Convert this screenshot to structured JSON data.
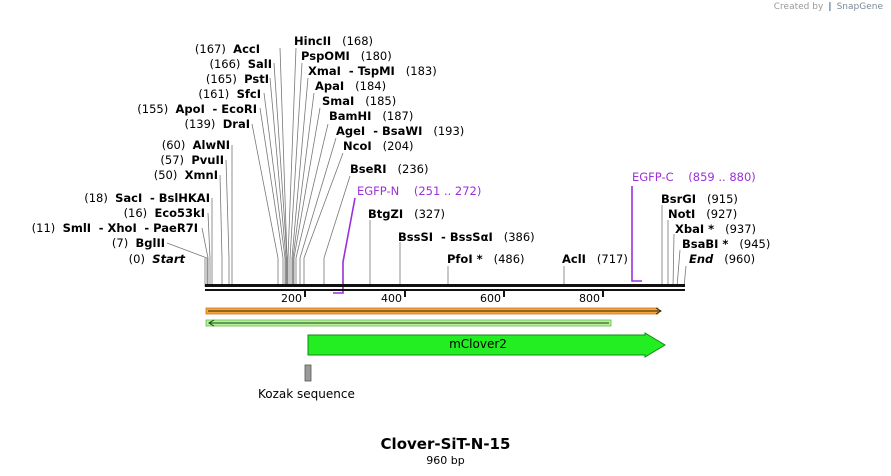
{
  "credit": {
    "prefix": "Created by",
    "brand": "SnapGene"
  },
  "title": "Clover-SiT-N-15",
  "subtitle": "960 bp",
  "ruler": {
    "ticks": [
      "200",
      "400",
      "600",
      "800"
    ]
  },
  "sites": [
    {
      "pos": "(167)",
      "name": "AccI"
    },
    {
      "pos": "(166)",
      "name": "SalI"
    },
    {
      "pos": "(165)",
      "name": "PstI"
    },
    {
      "pos": "(161)",
      "name": "SfcI"
    },
    {
      "pos": "(155)",
      "name": "ApoI",
      "name2": "EcoRI"
    },
    {
      "pos": "(139)",
      "name": "DraI"
    },
    {
      "pos": "(60)",
      "name": "AlwNI"
    },
    {
      "pos": "(57)",
      "name": "PvuII"
    },
    {
      "pos": "(50)",
      "name": "XmnI"
    },
    {
      "pos": "(18)",
      "name": "SacI",
      "name2": "BslHKAI"
    },
    {
      "pos": "(16)",
      "name": "Eco53kI"
    },
    {
      "pos": "(11)",
      "name": "SmlI",
      "name2": "XhoI",
      "name3": "PaeR7I"
    },
    {
      "pos": "(7)",
      "name": "BglII"
    },
    {
      "pos": "(0)",
      "name": "Start"
    },
    {
      "pos": "(168)",
      "name": "HincII"
    },
    {
      "pos": "(180)",
      "name": "PspOMI"
    },
    {
      "pos": "(183)",
      "name": "XmaI",
      "name2": "TspMI"
    },
    {
      "pos": "(184)",
      "name": "ApaI"
    },
    {
      "pos": "(185)",
      "name": "SmaI"
    },
    {
      "pos": "(187)",
      "name": "BamHI"
    },
    {
      "pos": "(193)",
      "name": "AgeI",
      "name2": "BsaWI"
    },
    {
      "pos": "(204)",
      "name": "NcoI"
    },
    {
      "pos": "(236)",
      "name": "BseRI"
    },
    {
      "pos": "(327)",
      "name": "BtgZI"
    },
    {
      "pos": "(386)",
      "name": "BssSI",
      "name2": "BssSαI"
    },
    {
      "pos": "(486)",
      "name": "PfoI *"
    },
    {
      "pos": "(717)",
      "name": "AclI"
    },
    {
      "pos": "(915)",
      "name": "BsrGI"
    },
    {
      "pos": "(927)",
      "name": "NotI"
    },
    {
      "pos": "(937)",
      "name": "XbaI *"
    },
    {
      "pos": "(945)",
      "name": "BsaBI *"
    },
    {
      "pos": "(960)",
      "name": "End"
    }
  ],
  "primers": [
    {
      "name": "EGFP-N",
      "range": "(251 .. 272)"
    },
    {
      "name": "EGFP-C",
      "range": "(859 .. 880)"
    }
  ],
  "features": {
    "mclover2": "mClover2",
    "kozak": "Kozak sequence"
  },
  "colors": {
    "primer": "#9b30d9",
    "feature": "#22ee22",
    "orange": "#f7a43a",
    "kozak": "#9a9a9a"
  }
}
